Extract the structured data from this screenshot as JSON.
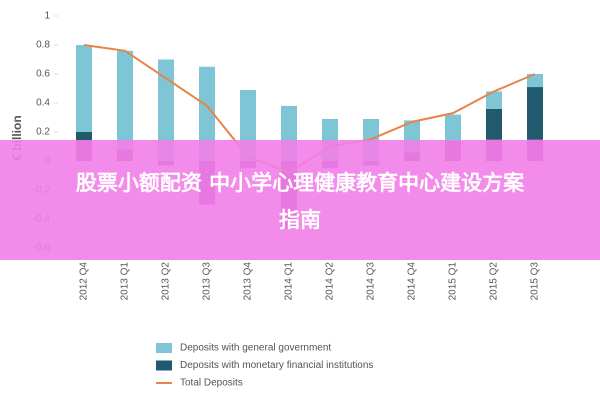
{
  "chart_data": {
    "type": "bar-line",
    "y_label": "€ billion",
    "categories": [
      "2012 Q4",
      "2013 Q1",
      "2013 Q2",
      "2013 Q3",
      "2013 Q4",
      "2014 Q1",
      "2014 Q2",
      "2014 Q3",
      "2014 Q4",
      "2015 Q1",
      "2015 Q2",
      "2015 Q3"
    ],
    "series": [
      {
        "color": "#7b3f91",
        "values": [
          0.14,
          0.08,
          -0.03,
          -0.3,
          -0.05,
          -0.47,
          -0.05,
          -0.03,
          0.06,
          0.14,
          0.15,
          0.15
        ]
      },
      {
        "name": "Deposits with monetary financial institutions",
        "color": "#1f5b6c",
        "values": [
          0.06,
          0,
          0,
          0,
          0,
          0,
          0,
          0,
          0,
          0,
          0.21,
          0.36
        ]
      },
      {
        "name": "Deposits with general government",
        "color": "#7ec6d6",
        "values": [
          0.6,
          0.68,
          0.7,
          0.65,
          0.49,
          0.38,
          0.29,
          0.29,
          0.22,
          0.18,
          0.12,
          0.09
        ]
      },
      {
        "name": "Total Deposits",
        "type": "line",
        "color": "#e8834a",
        "values": [
          0.8,
          0.76,
          0.57,
          0.38,
          0.03,
          -0.08,
          0.1,
          0.15,
          0.27,
          0.33,
          0.48,
          0.6
        ]
      }
    ],
    "ylim": [
      -0.6,
      1
    ],
    "yticks": [
      -0.6,
      -0.4,
      -0.2,
      0,
      0.2,
      0.4,
      0.6,
      0.8,
      1
    ]
  },
  "overlay": {
    "line1": "股票小额配资 中小学心理健康教育中心建设方案",
    "line2": "指南"
  }
}
